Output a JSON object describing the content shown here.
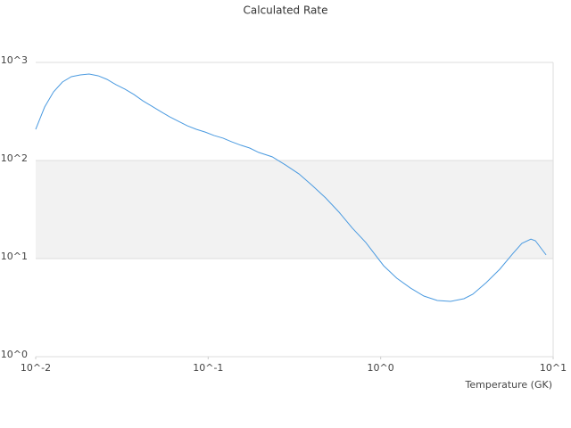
{
  "chart_data": {
    "type": "line",
    "title": "Calculated Rate",
    "x_label": "Temperature (GK)",
    "xscale": "log",
    "yscale": "log",
    "grid": true,
    "band_color": "#f2f2f2",
    "color": "#4a9ae0",
    "xlim": [
      0.01,
      10
    ],
    "ylim": [
      1,
      1000
    ],
    "xticks": [
      {
        "value": 0.01,
        "label": "10^-2"
      },
      {
        "value": 0.1,
        "label": "10^-1"
      },
      {
        "value": 1,
        "label": "10^0"
      },
      {
        "value": 10,
        "label": "10^1"
      }
    ],
    "yticks": [
      {
        "value": 1,
        "label": "10^0"
      },
      {
        "value": 10,
        "label": "10^1"
      },
      {
        "value": 100,
        "label": "10^2"
      },
      {
        "value": 1000,
        "label": "10^3"
      }
    ],
    "x": [
      0.01,
      0.01127,
      0.01269,
      0.01429,
      0.0161,
      0.01815,
      0.0204,
      0.023,
      0.0259,
      0.0292,
      0.0329,
      0.0371,
      0.0418,
      0.047,
      0.053,
      0.0597,
      0.0673,
      0.0757,
      0.0853,
      0.0961,
      0.108,
      0.122,
      0.137,
      0.155,
      0.174,
      0.196,
      0.235,
      0.281,
      0.336,
      0.401,
      0.48,
      0.574,
      0.686,
      0.82,
      0.924,
      1.04,
      1.24,
      1.49,
      1.78,
      2.13,
      2.54,
      3.04,
      3.42,
      4.09,
      4.9,
      5.85,
      6.59,
      7.43,
      7.89,
      9.1
    ],
    "values": [
      208,
      351,
      501,
      631,
      716,
      746,
      762,
      731,
      672,
      593,
      534,
      471,
      406,
      359,
      316,
      279,
      251,
      226,
      208,
      195,
      180,
      169,
      155,
      143,
      134,
      121,
      109,
      90,
      73,
      55.6,
      41.5,
      29.7,
      20.4,
      14.6,
      11.1,
      8.46,
      6.31,
      5.01,
      4.15,
      3.74,
      3.66,
      3.9,
      4.33,
      5.68,
      7.78,
      11.3,
      14.3,
      15.8,
      15.2,
      10.9
    ]
  }
}
